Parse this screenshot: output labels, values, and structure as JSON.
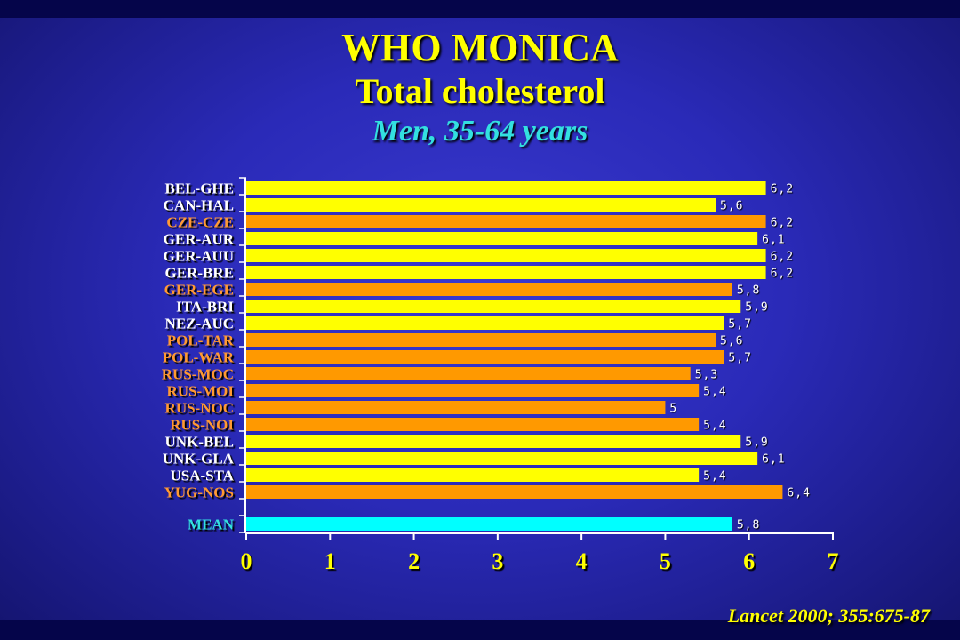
{
  "title": "WHO MONICA",
  "subtitle": "Total cholesterol",
  "subtitle2": "Men, 35-64 years",
  "citation": "Lancet 2000; 355:675-87",
  "colors": {
    "bar_default": "#ffff00",
    "bar_highlight": "#ff9900",
    "bar_mean": "#00ffff",
    "label_default": "#ffffff",
    "label_highlight": "#ff9933",
    "label_mean": "#33e0e0"
  },
  "chart_data": {
    "type": "bar",
    "orientation": "horizontal",
    "categories": [
      "BEL-GHE",
      "CAN-HAL",
      "CZE-CZE",
      "GER-AUR",
      "GER-AUU",
      "GER-BRE",
      "GER-EGE",
      "ITA-BRI",
      "NEZ-AUC",
      "POL-TAR",
      "POL-WAR",
      "RUS-MOC",
      "RUS-MOI",
      "RUS-NOC",
      "RUS-NOI",
      "UNK-BEL",
      "UNK-GLA",
      "USA-STA",
      "YUG-NOS",
      "MEAN"
    ],
    "values": [
      6.2,
      5.6,
      6.2,
      6.1,
      6.2,
      6.2,
      5.8,
      5.9,
      5.7,
      5.6,
      5.7,
      5.3,
      5.4,
      5,
      5.4,
      5.9,
      6.1,
      5.4,
      6.4,
      5.8
    ],
    "value_labels": [
      "6,2",
      "5,6",
      "6,2",
      "6,1",
      "6,2",
      "6,2",
      "5,8",
      "5,9",
      "5,7",
      "5,6",
      "5,7",
      "5,3",
      "5,4",
      "5",
      "5,4",
      "5,9",
      "6,1",
      "5,4",
      "6,4",
      "5,8"
    ],
    "highlight": [
      false,
      false,
      true,
      false,
      false,
      false,
      true,
      false,
      false,
      true,
      true,
      true,
      true,
      true,
      true,
      false,
      false,
      false,
      true,
      false
    ],
    "mean_index": 19,
    "xlim": [
      0,
      7
    ],
    "xticks": [
      "0",
      "1",
      "2",
      "3",
      "4",
      "5",
      "6",
      "7"
    ],
    "grid": false,
    "legend": "none"
  }
}
